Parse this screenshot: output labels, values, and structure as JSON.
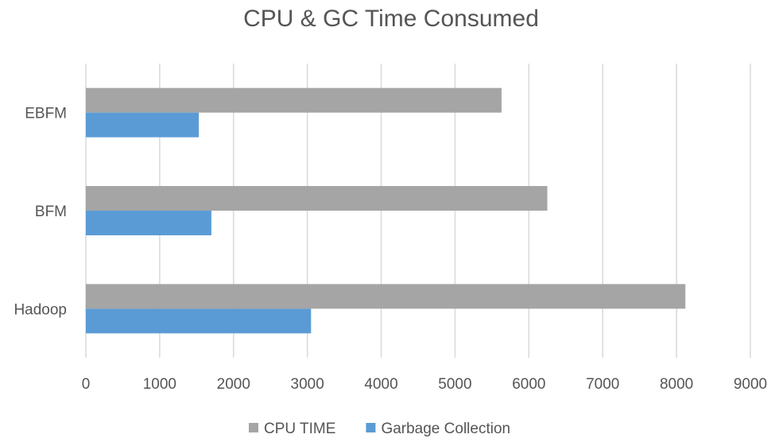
{
  "chart_data": {
    "type": "bar",
    "orientation": "horizontal",
    "title": "CPU & GC Time Consumed",
    "categories": [
      "Hadoop",
      "BFM",
      "EBFM"
    ],
    "series": [
      {
        "name": "CPU TIME",
        "values": [
          8120,
          6250,
          5630
        ],
        "color": "#a5a5a5"
      },
      {
        "name": "Garbage Collection",
        "values": [
          3050,
          1700,
          1530
        ],
        "color": "#5b9bd5"
      }
    ],
    "xlim": [
      0,
      9000
    ],
    "xticks": [
      "0",
      "1000",
      "2000",
      "3000",
      "4000",
      "5000",
      "6000",
      "7000",
      "8000",
      "9000"
    ],
    "grid": true,
    "legend_position": "bottom",
    "gridline_color": "#d9d9d9"
  }
}
